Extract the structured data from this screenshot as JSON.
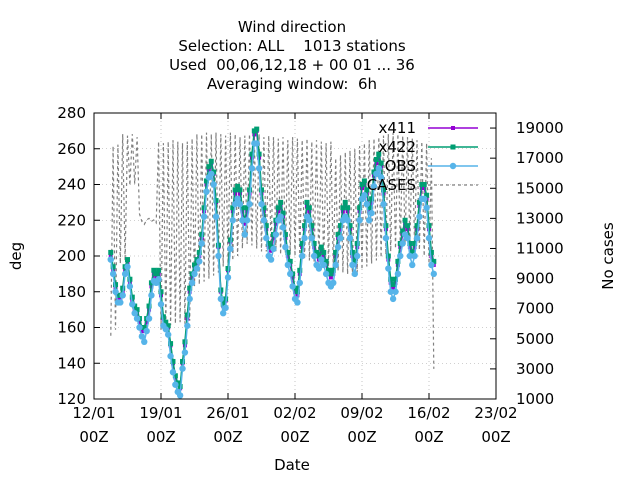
{
  "chart_data": {
    "type": "line",
    "title_lines": [
      "Wind direction",
      "Selection: ALL    1013 stations",
      "Used  00,06,12,18 + 00 01 ... 36",
      "Averaging window:  6h"
    ],
    "xlabel": "Date",
    "ylabel": "deg",
    "y2label": "No cases",
    "xlim": [
      0,
      42
    ],
    "ylim": [
      120,
      280
    ],
    "y2lim": [
      1000,
      20000
    ],
    "x_ticks": [
      {
        "x": 0,
        "line1": "12/01",
        "line2": "00Z"
      },
      {
        "x": 7,
        "line1": "19/01",
        "line2": "00Z"
      },
      {
        "x": 14,
        "line1": "26/01",
        "line2": "00Z"
      },
      {
        "x": 21,
        "line1": "02/02",
        "line2": "00Z"
      },
      {
        "x": 28,
        "line1": "09/02",
        "line2": "00Z"
      },
      {
        "x": 35,
        "line1": "16/02",
        "line2": "00Z"
      },
      {
        "x": 42,
        "line1": "23/02",
        "line2": "00Z"
      }
    ],
    "y_ticks": [
      120,
      140,
      160,
      180,
      200,
      220,
      240,
      260,
      280
    ],
    "y2_ticks": [
      1000,
      3000,
      5000,
      7000,
      9000,
      11000,
      13000,
      15000,
      17000,
      19000
    ],
    "legend_position": "top-right",
    "colors": {
      "x411": "#9400d3",
      "x422": "#009e73",
      "OBS": "#56b4e9",
      "CASES": "#808080"
    },
    "day_start": 1.75,
    "step_days": 0.25,
    "series": [
      {
        "name": "x411",
        "axis": "left",
        "values": [
          200,
          192,
          182,
          176,
          176,
          180,
          192,
          196,
          185,
          175,
          170,
          168,
          163,
          158,
          158,
          163,
          170,
          183,
          190,
          188,
          190,
          178,
          165,
          162,
          160,
          150,
          140,
          132,
          128,
          126,
          140,
          150,
          165,
          180,
          188,
          193,
          196,
          200,
          210,
          225,
          240,
          248,
          252,
          246,
          230,
          205,
          180,
          172,
          175,
          192,
          208,
          225,
          235,
          237,
          235,
          225,
          218,
          225,
          235,
          255,
          268,
          270,
          255,
          235,
          225,
          215,
          205,
          203,
          210,
          218,
          225,
          228,
          222,
          210,
          200,
          195,
          188,
          180,
          178,
          190,
          205,
          215,
          228,
          225,
          215,
          205,
          200,
          198,
          203,
          200,
          195,
          190,
          188,
          190,
          200,
          210,
          215,
          225,
          228,
          225,
          215,
          200,
          195,
          205,
          225,
          238,
          240,
          235,
          225,
          230,
          245,
          252,
          255,
          250,
          235,
          215,
          198,
          185,
          182,
          185,
          195,
          205,
          212,
          218,
          215,
          205,
          200,
          205,
          215,
          228,
          238,
          238,
          232,
          215,
          200,
          195
        ]
      },
      {
        "name": "x422",
        "axis": "left",
        "values": [
          202,
          194,
          184,
          178,
          178,
          182,
          194,
          198,
          187,
          177,
          172,
          170,
          165,
          160,
          160,
          165,
          172,
          185,
          192,
          190,
          192,
          180,
          166,
          163,
          161,
          151,
          141,
          133,
          129,
          127,
          141,
          152,
          167,
          182,
          190,
          195,
          198,
          202,
          212,
          227,
          242,
          250,
          253,
          247,
          231,
          206,
          181,
          173,
          176,
          193,
          209,
          227,
          237,
          239,
          237,
          227,
          220,
          227,
          237,
          257,
          270,
          271,
          257,
          237,
          227,
          217,
          207,
          205,
          212,
          220,
          227,
          230,
          224,
          212,
          202,
          197,
          190,
          182,
          180,
          192,
          207,
          217,
          230,
          227,
          217,
          207,
          202,
          200,
          205,
          202,
          197,
          192,
          190,
          192,
          202,
          212,
          217,
          227,
          230,
          227,
          217,
          202,
          197,
          207,
          227,
          240,
          242,
          237,
          227,
          232,
          247,
          254,
          257,
          252,
          237,
          217,
          200,
          187,
          184,
          187,
          197,
          207,
          214,
          220,
          217,
          207,
          202,
          207,
          217,
          230,
          240,
          240,
          234,
          217,
          202,
          197
        ]
      },
      {
        "name": "OBS",
        "axis": "left",
        "values": [
          198,
          190,
          180,
          174,
          174,
          178,
          190,
          194,
          183,
          173,
          168,
          165,
          160,
          155,
          152,
          158,
          165,
          178,
          186,
          185,
          187,
          173,
          161,
          159,
          156,
          144,
          135,
          128,
          124,
          122,
          137,
          146,
          161,
          176,
          185,
          190,
          193,
          197,
          207,
          222,
          236,
          244,
          246,
          240,
          222,
          200,
          176,
          168,
          171,
          188,
          204,
          220,
          229,
          232,
          229,
          220,
          212,
          220,
          229,
          249,
          263,
          263,
          249,
          229,
          220,
          210,
          200,
          198,
          204,
          212,
          220,
          222,
          216,
          205,
          195,
          190,
          183,
          176,
          174,
          185,
          200,
          210,
          222,
          220,
          210,
          200,
          195,
          193,
          198,
          195,
          190,
          185,
          183,
          185,
          195,
          205,
          210,
          220,
          222,
          220,
          210,
          195,
          190,
          200,
          220,
          232,
          234,
          229,
          220,
          224,
          239,
          246,
          249,
          244,
          229,
          210,
          193,
          180,
          176,
          180,
          190,
          200,
          207,
          212,
          210,
          200,
          195,
          200,
          210,
          222,
          232,
          232,
          227,
          210,
          195,
          190
        ]
      },
      {
        "name": "CASES",
        "axis": "right",
        "values": [
          5200,
          17800,
          5600,
          17900,
          10000,
          18600,
          10200,
          18500,
          15200,
          18600,
          15300,
          18400,
          13300,
          12800,
          12600,
          12900,
          13000,
          12800,
          12900,
          12700,
          18100,
          5600,
          18000,
          5800,
          18100,
          5900,
          18200,
          6000,
          18100,
          6100,
          18000,
          6000,
          18100,
          6200,
          18300,
          8500,
          18600,
          8600,
          18600,
          8800,
          18700,
          9000,
          18600,
          9200,
          18700,
          9400,
          18600,
          9800,
          18500,
          10000,
          18700,
          10200,
          18600,
          10500,
          18400,
          11000,
          18500,
          11300,
          18600,
          11200,
          18500,
          11000,
          18600,
          10800,
          18400,
          10800,
          18500,
          10700,
          18400,
          10800,
          18300,
          10600,
          18400,
          10700,
          18200,
          10600,
          18400,
          10500,
          18300,
          10400,
          18200,
          10300,
          18300,
          10200,
          18100,
          10100,
          18200,
          10000,
          18100,
          9900,
          18000,
          9800,
          18100,
          9700,
          17000,
          9500,
          17200,
          9400,
          17400,
          9300,
          17500,
          9200,
          17600,
          9400,
          17800,
          9600,
          18000,
          9800,
          18200,
          10000,
          18300,
          10200,
          18400,
          10400,
          18500,
          10600,
          18600,
          10800,
          18700,
          11000,
          18600,
          11200,
          18500,
          11400,
          18400,
          11300,
          18300,
          11100,
          18200,
          10900,
          18100,
          10500,
          18000,
          10000,
          17000,
          3000
        ]
      }
    ]
  }
}
